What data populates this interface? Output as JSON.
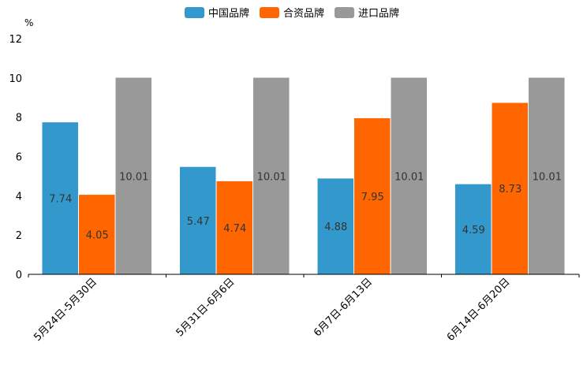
{
  "chart_data": {
    "type": "bar",
    "title": "",
    "ylabel": "%",
    "xlabel": "",
    "ylim": [
      0,
      12
    ],
    "yticks": [
      0,
      2,
      4,
      6,
      8,
      10,
      12
    ],
    "categories": [
      "5月24日-5月30日",
      "5月31日-6月6日",
      "6月7日-6月13日",
      "6月14日-6月20日"
    ],
    "series": [
      {
        "name": "中国品牌",
        "color": "#3399CC",
        "values": [
          7.74,
          5.47,
          4.88,
          4.59
        ]
      },
      {
        "name": "合资品牌",
        "color": "#FF6600",
        "values": [
          4.05,
          4.74,
          7.95,
          8.73
        ]
      },
      {
        "name": "进口品牌",
        "color": "#999999",
        "values": [
          10.01,
          10.01,
          10.01,
          10.01
        ]
      }
    ],
    "legend_position": "top-center",
    "grid": false
  }
}
